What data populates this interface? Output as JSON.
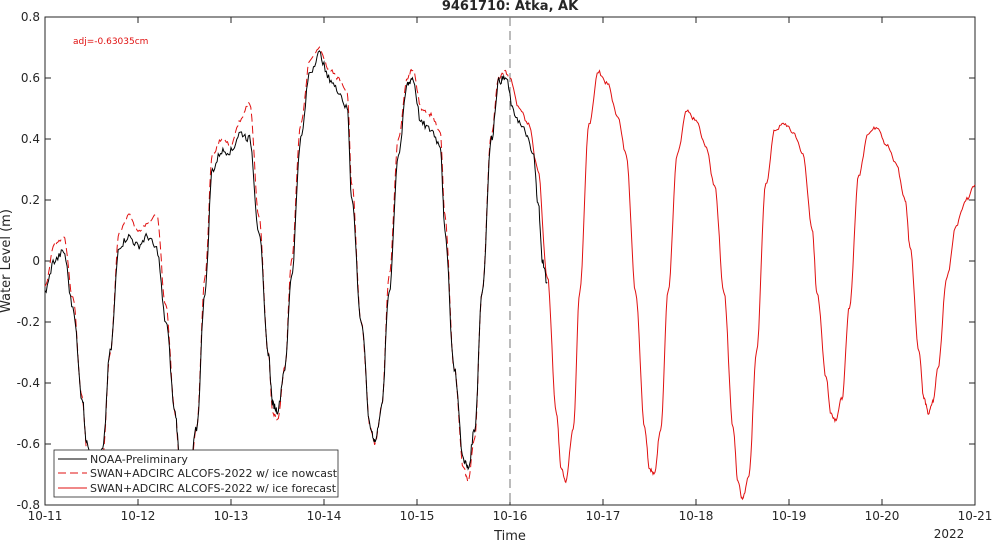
{
  "chart_data": {
    "type": "line",
    "title": "9461710: Atka, AK",
    "xlabel": "Time",
    "ylabel": "Water Level (m)",
    "annotation": "adj=-0.63035cm",
    "x_tick_labels": [
      "10-11",
      "10-12",
      "10-13",
      "10-14",
      "10-15",
      "10-16",
      "10-17",
      "10-18",
      "10-19",
      "10-20",
      "10-21"
    ],
    "x_year_label": "2022",
    "xlim": [
      0,
      10
    ],
    "ylim": [
      -0.8,
      0.8
    ],
    "y_ticks": [
      -0.8,
      -0.6,
      -0.4,
      -0.2,
      0,
      0.2,
      0.4,
      0.6,
      0.8
    ],
    "y_tick_labels": [
      "-0.8",
      "-0.6",
      "-0.4",
      "-0.2",
      "0",
      "0.2",
      "0.4",
      "0.6",
      "0.8"
    ],
    "vline_x": 5,
    "grid": false,
    "legend_position": "bottom-left",
    "series": [
      {
        "name": "NOAA-Preliminary",
        "color": "#000000",
        "style": "solid",
        "points": [
          [
            0,
            -0.1
          ],
          [
            0.1,
            0.0
          ],
          [
            0.2,
            0.03
          ],
          [
            0.3,
            -0.15
          ],
          [
            0.4,
            -0.45
          ],
          [
            0.45,
            -0.6
          ],
          [
            0.55,
            -0.68
          ],
          [
            0.62,
            -0.62
          ],
          [
            0.7,
            -0.3
          ],
          [
            0.8,
            0.05
          ],
          [
            0.9,
            0.08
          ],
          [
            1.0,
            0.05
          ],
          [
            1.1,
            0.08
          ],
          [
            1.2,
            0.04
          ],
          [
            1.3,
            -0.2
          ],
          [
            1.4,
            -0.5
          ],
          [
            1.45,
            -0.65
          ],
          [
            1.55,
            -0.7
          ],
          [
            1.63,
            -0.55
          ],
          [
            1.72,
            -0.1
          ],
          [
            1.8,
            0.3
          ],
          [
            1.9,
            0.36
          ],
          [
            2.0,
            0.36
          ],
          [
            2.1,
            0.42
          ],
          [
            2.2,
            0.4
          ],
          [
            2.3,
            0.1
          ],
          [
            2.4,
            -0.3
          ],
          [
            2.45,
            -0.47
          ],
          [
            2.5,
            -0.49
          ],
          [
            2.58,
            -0.35
          ],
          [
            2.65,
            -0.05
          ],
          [
            2.75,
            0.4
          ],
          [
            2.85,
            0.62
          ],
          [
            2.95,
            0.68
          ],
          [
            3.05,
            0.6
          ],
          [
            3.15,
            0.56
          ],
          [
            3.25,
            0.5
          ],
          [
            3.3,
            0.2
          ],
          [
            3.4,
            -0.2
          ],
          [
            3.5,
            -0.55
          ],
          [
            3.55,
            -0.59
          ],
          [
            3.62,
            -0.48
          ],
          [
            3.7,
            -0.1
          ],
          [
            3.8,
            0.35
          ],
          [
            3.9,
            0.58
          ],
          [
            3.95,
            0.6
          ],
          [
            4.05,
            0.45
          ],
          [
            4.15,
            0.43
          ],
          [
            4.25,
            0.38
          ],
          [
            4.3,
            0.1
          ],
          [
            4.4,
            -0.35
          ],
          [
            4.5,
            -0.65
          ],
          [
            4.55,
            -0.68
          ],
          [
            4.62,
            -0.55
          ],
          [
            4.7,
            -0.1
          ],
          [
            4.8,
            0.4
          ],
          [
            4.88,
            0.59
          ],
          [
            4.95,
            0.6
          ],
          [
            5.05,
            0.48
          ],
          [
            5.15,
            0.43
          ],
          [
            5.25,
            0.35
          ],
          [
            5.3,
            0.2
          ],
          [
            5.35,
            0.0
          ],
          [
            5.4,
            -0.07
          ]
        ]
      },
      {
        "name": "SWAN+ADCIRC ALCOFS-2022 w/ ice nowcast",
        "color": "#e01010",
        "style": "dashed",
        "points": [
          [
            0,
            -0.08
          ],
          [
            0.1,
            0.05
          ],
          [
            0.2,
            0.08
          ],
          [
            0.3,
            -0.12
          ],
          [
            0.4,
            -0.45
          ],
          [
            0.45,
            -0.62
          ],
          [
            0.55,
            -0.7
          ],
          [
            0.62,
            -0.64
          ],
          [
            0.7,
            -0.3
          ],
          [
            0.8,
            0.1
          ],
          [
            0.9,
            0.15
          ],
          [
            1.0,
            0.1
          ],
          [
            1.1,
            0.12
          ],
          [
            1.2,
            0.15
          ],
          [
            1.3,
            -0.15
          ],
          [
            1.4,
            -0.5
          ],
          [
            1.45,
            -0.66
          ],
          [
            1.55,
            -0.72
          ],
          [
            1.63,
            -0.55
          ],
          [
            1.72,
            -0.05
          ],
          [
            1.8,
            0.35
          ],
          [
            1.9,
            0.4
          ],
          [
            2.0,
            0.38
          ],
          [
            2.1,
            0.46
          ],
          [
            2.2,
            0.52
          ],
          [
            2.3,
            0.15
          ],
          [
            2.4,
            -0.3
          ],
          [
            2.45,
            -0.5
          ],
          [
            2.5,
            -0.52
          ],
          [
            2.58,
            -0.35
          ],
          [
            2.65,
            0.0
          ],
          [
            2.75,
            0.45
          ],
          [
            2.85,
            0.66
          ],
          [
            2.95,
            0.7
          ],
          [
            3.05,
            0.63
          ],
          [
            3.15,
            0.6
          ],
          [
            3.25,
            0.55
          ],
          [
            3.3,
            0.25
          ],
          [
            3.4,
            -0.2
          ],
          [
            3.5,
            -0.55
          ],
          [
            3.55,
            -0.6
          ],
          [
            3.62,
            -0.48
          ],
          [
            3.7,
            -0.05
          ],
          [
            3.8,
            0.4
          ],
          [
            3.9,
            0.6
          ],
          [
            3.95,
            0.63
          ],
          [
            4.05,
            0.5
          ],
          [
            4.15,
            0.48
          ],
          [
            4.25,
            0.42
          ],
          [
            4.3,
            0.15
          ],
          [
            4.4,
            -0.35
          ],
          [
            4.5,
            -0.68
          ],
          [
            4.55,
            -0.72
          ],
          [
            4.62,
            -0.58
          ],
          [
            4.7,
            -0.1
          ],
          [
            4.8,
            0.42
          ],
          [
            4.88,
            0.6
          ],
          [
            4.95,
            0.62
          ],
          [
            5.0,
            0.6
          ]
        ]
      },
      {
        "name": "SWAN+ADCIRC ALCOFS-2022 w/ ice forecast",
        "color": "#e01010",
        "style": "solid",
        "points": [
          [
            5.0,
            0.6
          ],
          [
            5.1,
            0.5
          ],
          [
            5.2,
            0.45
          ],
          [
            5.3,
            0.3
          ],
          [
            5.4,
            -0.05
          ],
          [
            5.5,
            -0.5
          ],
          [
            5.55,
            -0.68
          ],
          [
            5.6,
            -0.72
          ],
          [
            5.68,
            -0.55
          ],
          [
            5.75,
            -0.1
          ],
          [
            5.85,
            0.45
          ],
          [
            5.95,
            0.62
          ],
          [
            6.05,
            0.58
          ],
          [
            6.15,
            0.48
          ],
          [
            6.25,
            0.35
          ],
          [
            6.35,
            -0.1
          ],
          [
            6.45,
            -0.55
          ],
          [
            6.5,
            -0.68
          ],
          [
            6.55,
            -0.7
          ],
          [
            6.62,
            -0.55
          ],
          [
            6.7,
            -0.1
          ],
          [
            6.8,
            0.35
          ],
          [
            6.9,
            0.49
          ],
          [
            7.0,
            0.46
          ],
          [
            7.1,
            0.38
          ],
          [
            7.2,
            0.25
          ],
          [
            7.3,
            -0.1
          ],
          [
            7.4,
            -0.55
          ],
          [
            7.45,
            -0.72
          ],
          [
            7.5,
            -0.78
          ],
          [
            7.57,
            -0.7
          ],
          [
            7.65,
            -0.3
          ],
          [
            7.75,
            0.25
          ],
          [
            7.85,
            0.43
          ],
          [
            7.95,
            0.45
          ],
          [
            8.05,
            0.42
          ],
          [
            8.15,
            0.35
          ],
          [
            8.25,
            0.1
          ],
          [
            8.3,
            -0.1
          ],
          [
            8.4,
            -0.38
          ],
          [
            8.45,
            -0.5
          ],
          [
            8.5,
            -0.52
          ],
          [
            8.57,
            -0.45
          ],
          [
            8.65,
            -0.15
          ],
          [
            8.75,
            0.28
          ],
          [
            8.85,
            0.42
          ],
          [
            8.95,
            0.44
          ],
          [
            9.05,
            0.38
          ],
          [
            9.15,
            0.32
          ],
          [
            9.25,
            0.2
          ],
          [
            9.3,
            0.05
          ],
          [
            9.4,
            -0.3
          ],
          [
            9.45,
            -0.45
          ],
          [
            9.5,
            -0.5
          ],
          [
            9.55,
            -0.46
          ],
          [
            9.6,
            -0.35
          ],
          [
            9.7,
            -0.05
          ],
          [
            9.8,
            0.12
          ],
          [
            9.9,
            0.2
          ],
          [
            10.0,
            0.25
          ]
        ]
      }
    ]
  }
}
